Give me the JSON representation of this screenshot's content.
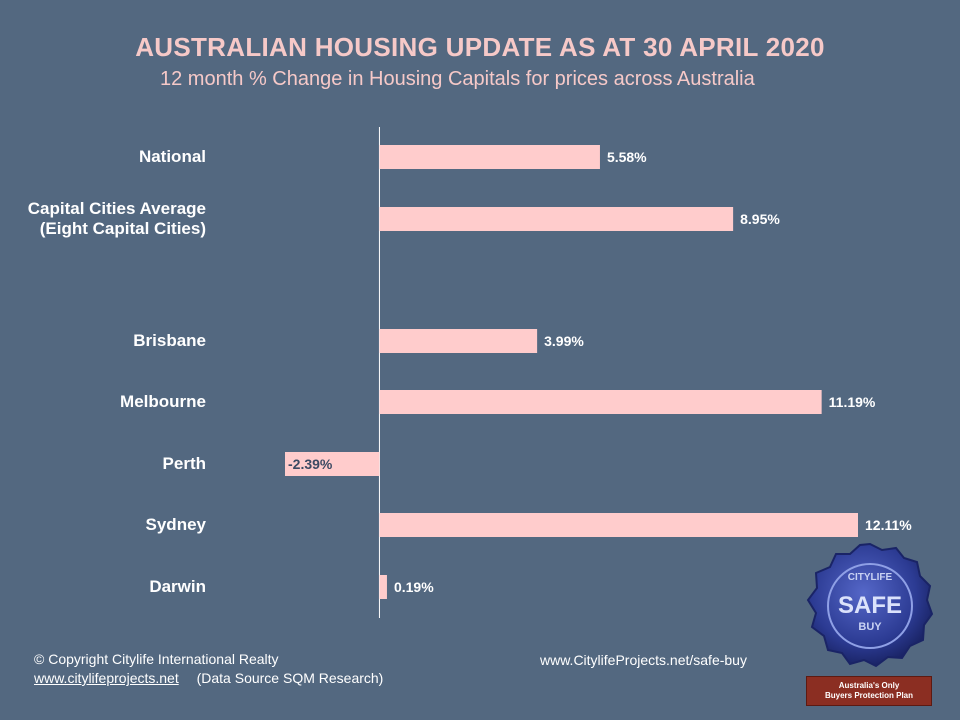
{
  "chart_data": {
    "type": "bar",
    "orientation": "horizontal",
    "title": "AUSTRALIAN HOUSING UPDATE AS AT 30 APRIL 2020",
    "subtitle": "12 month % Change in Housing Capitals for prices across Australia",
    "categories": [
      "National",
      "Capital Cities Average (Eight Capital Cities)",
      "Brisbane",
      "Melbourne",
      "Perth",
      "Sydney",
      "Darwin"
    ],
    "category_lines": [
      [
        "National"
      ],
      [
        "Capital Cities Average",
        "(Eight Capital Cities)"
      ],
      [
        "Brisbane"
      ],
      [
        "Melbourne"
      ],
      [
        "Perth"
      ],
      [
        "Sydney"
      ],
      [
        "Darwin"
      ]
    ],
    "values": [
      5.58,
      8.95,
      3.99,
      11.19,
      -2.39,
      12.11,
      0.19
    ],
    "value_labels": [
      "5.58%",
      "8.95%",
      "3.99%",
      "11.19%",
      "-2.39%",
      "12.11%",
      "0.19%"
    ],
    "xlim": [
      -2.39,
      12.11
    ],
    "bar_color": "#ffcccc",
    "grid": false,
    "xlabel": "",
    "ylabel": ""
  },
  "footer": {
    "copyright": "© Copyright Citylife International  Realty",
    "link": "www.citylifeprojects.net",
    "source": "(Data Source SQM Research)",
    "website": "www.CitylifeProjects.net/safe-buy"
  },
  "badge": {
    "seal_top": "CITYLIFE",
    "seal_main": "SAFE",
    "seal_sub": "BUY",
    "banner_line1": "Australia's Only",
    "banner_line2": "Buyers Protection Plan"
  },
  "colors": {
    "background": "#536880",
    "title": "#f6c9c8",
    "bar": "#ffcccc",
    "seal": "#2f3f9a",
    "banner": "#8b2e22"
  }
}
